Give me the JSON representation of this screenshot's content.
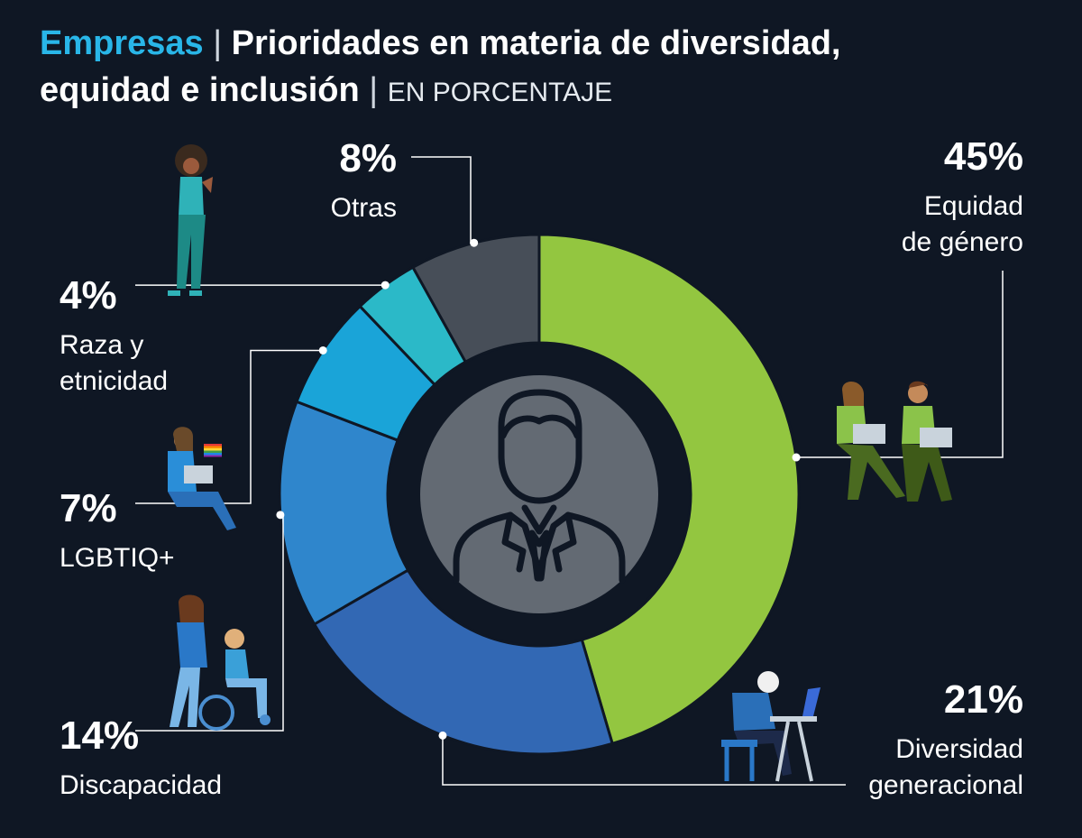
{
  "header": {
    "brand": "Empresas",
    "separator": "|",
    "title_line1": "Prioridades en materia de diversidad,",
    "title_line2": "equidad e inclusión",
    "unit": "EN PORCENTAJE"
  },
  "colors": {
    "background": "#0f1724",
    "brand": "#29b6e8",
    "leader_line": "#ffffff"
  },
  "chart_data": {
    "type": "pie",
    "style": "donut",
    "title": "Prioridades en materia de diversidad, equidad e inclusión",
    "unit": "EN PORCENTAJE",
    "slices": [
      {
        "name": "Equidad de género",
        "label_lines": [
          "Equidad",
          "de género"
        ],
        "value": 45,
        "value_label": "45%",
        "color": "#93c640"
      },
      {
        "name": "Diversidad generacional",
        "label_lines": [
          "Diversidad",
          "generacional"
        ],
        "value": 21,
        "value_label": "21%",
        "color": "#3268b4"
      },
      {
        "name": "Discapacidad",
        "label_lines": [
          "Discapacidad"
        ],
        "value": 14,
        "value_label": "14%",
        "color": "#2f86cc"
      },
      {
        "name": "LGBTIQ+",
        "label_lines": [
          "LGBTIQ+"
        ],
        "value": 7,
        "value_label": "7%",
        "color": "#1aa4d8"
      },
      {
        "name": "Raza y etnicidad",
        "label_lines": [
          "Raza y",
          "etnicidad"
        ],
        "value": 4,
        "value_label": "4%",
        "color": "#2bb9c8"
      },
      {
        "name": "Otras",
        "label_lines": [
          "Otras"
        ],
        "value": 8,
        "value_label": "8%",
        "color": "#474e58"
      }
    ],
    "center_icon": "businessman-icon",
    "illustrations": [
      "woman-with-phone",
      "woman-with-laptop-and-rainbow-flag",
      "person-in-wheelchair-with-caregiver",
      "two-people-with-laptops",
      "older-man-at-computer"
    ]
  }
}
